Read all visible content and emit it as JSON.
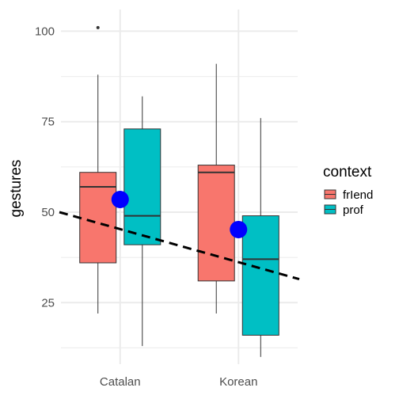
{
  "chart_data": {
    "type": "box",
    "title": "",
    "xlabel": "",
    "ylabel": "gestures",
    "ylim": [
      8,
      106
    ],
    "y_ticks": [
      25,
      50,
      75,
      100
    ],
    "categories": [
      "Catalan",
      "Korean"
    ],
    "legend": {
      "title": "context",
      "position": "right",
      "entries": [
        {
          "label": "frIend",
          "color": "#F8766D"
        },
        {
          "label": "prof",
          "color": "#00BFC4"
        }
      ]
    },
    "series": [
      {
        "name": "frIend",
        "color": "#F8766D",
        "boxes": [
          {
            "category": "Catalan",
            "min": 22,
            "q1": 36,
            "median": 57,
            "q3": 61,
            "max": 88,
            "outliers": [
              101
            ]
          },
          {
            "category": "Korean",
            "min": 22,
            "q1": 31,
            "median": 61,
            "q3": 63,
            "max": 91,
            "outliers": []
          }
        ]
      },
      {
        "name": "prof",
        "color": "#00BFC4",
        "boxes": [
          {
            "category": "Catalan",
            "min": 13,
            "q1": 41,
            "median": 49,
            "q3": 73,
            "max": 82,
            "outliers": []
          },
          {
            "category": "Korean",
            "min": 10,
            "q1": 16,
            "median": 37,
            "q3": 49,
            "max": 76,
            "outliers": []
          }
        ]
      }
    ],
    "means": [
      {
        "category": "Catalan",
        "value": 53.5,
        "color": "#0000FF"
      },
      {
        "category": "Korean",
        "value": 45.2,
        "color": "#0000FF"
      }
    ],
    "trend_line": {
      "style": "dashed",
      "color": "#000000",
      "from": {
        "x": 0.5,
        "y": 50
      },
      "to": {
        "x": 2.5,
        "y": 31.5
      }
    },
    "grid": true
  }
}
